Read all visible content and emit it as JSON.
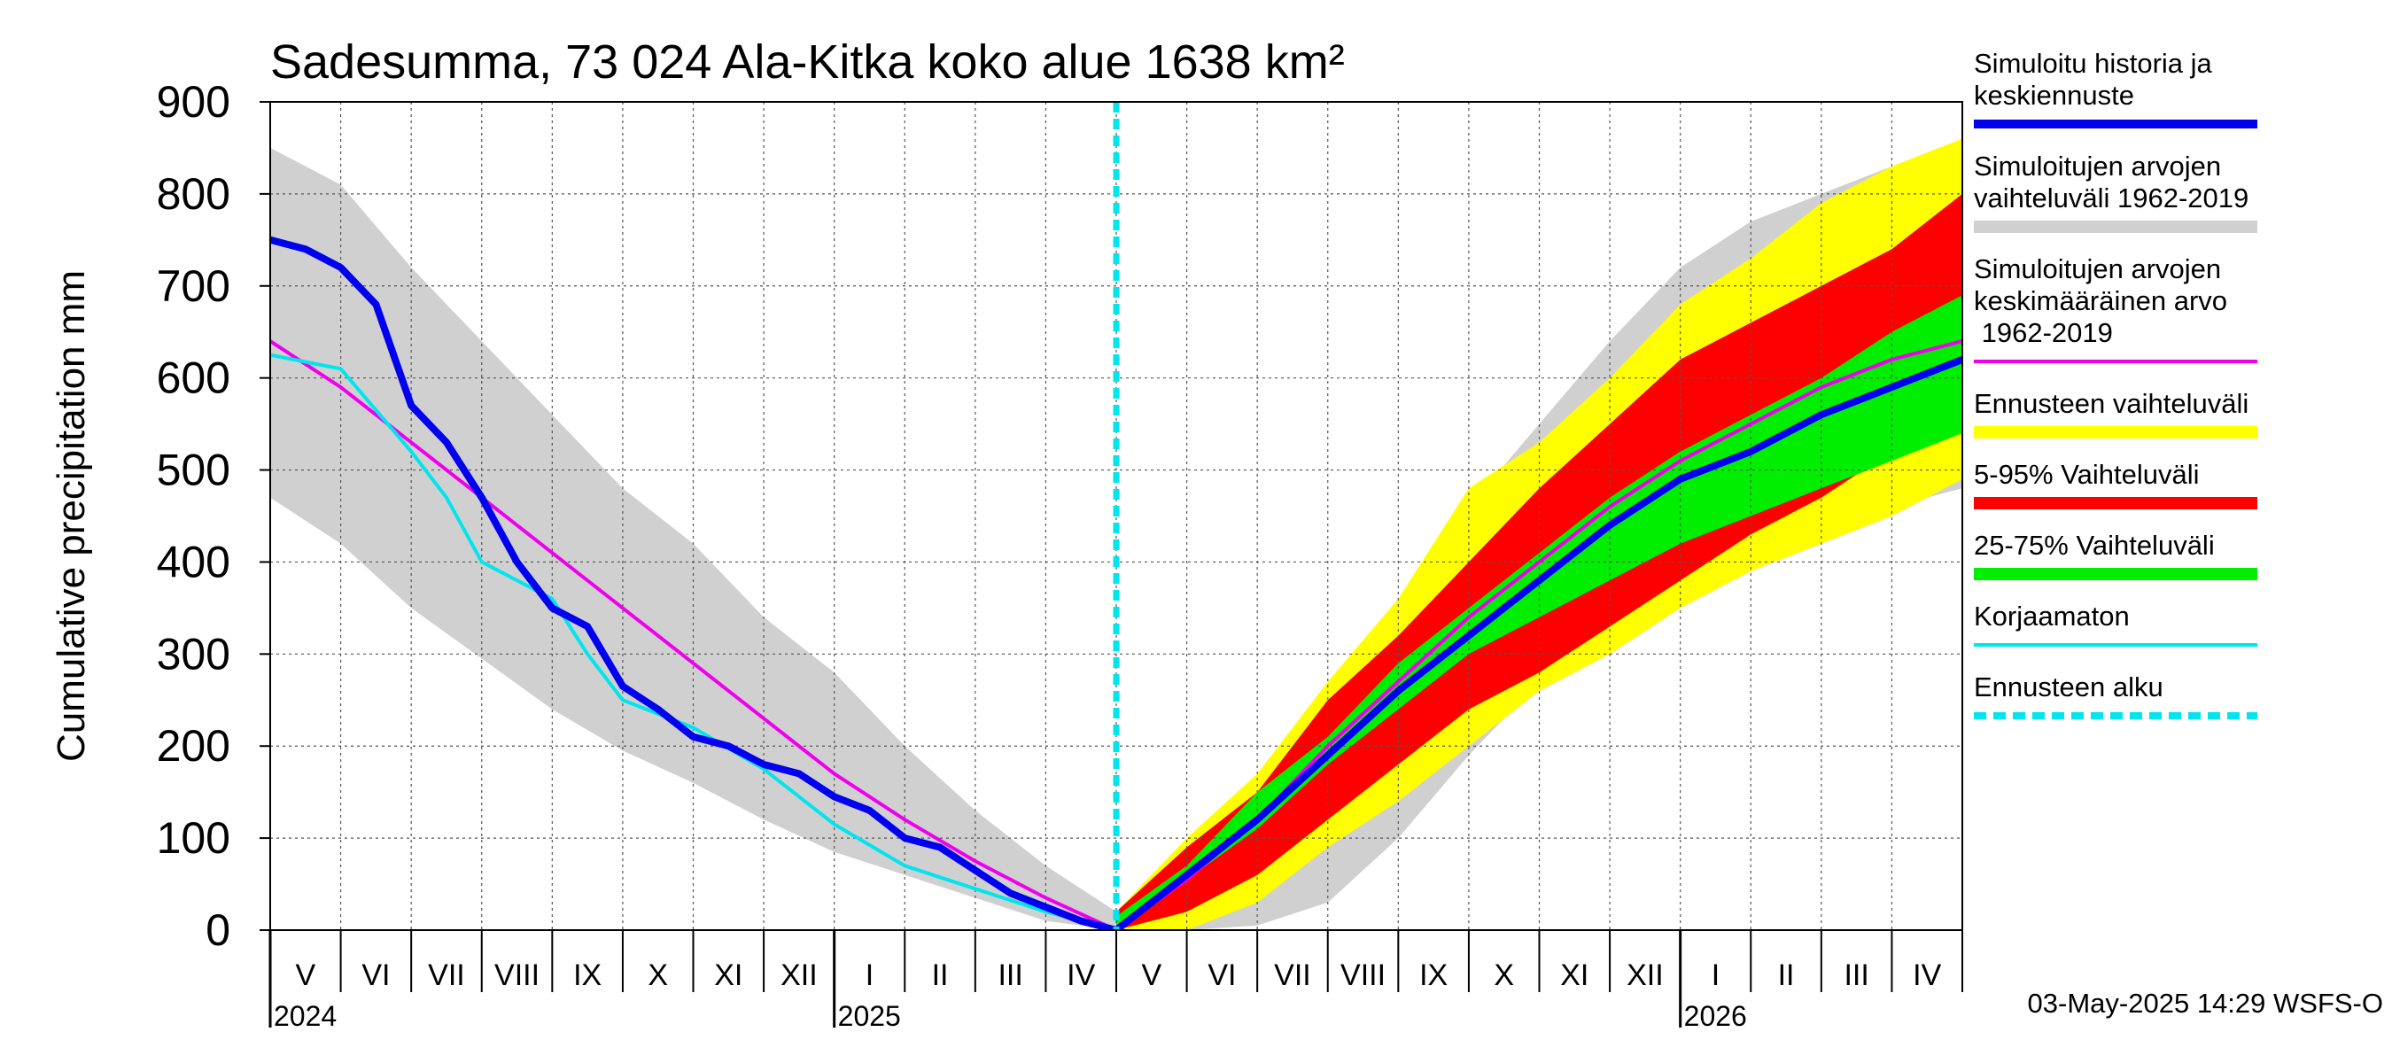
{
  "chart_data": {
    "type": "area",
    "title": "Sadesumma, 73 024 Ala-Kitka koko alue 1638 km²",
    "ylabel": "Cumulative precipitation   mm",
    "xlabel": "",
    "ylim": [
      0,
      900
    ],
    "yticks": [
      0,
      100,
      200,
      300,
      400,
      500,
      600,
      700,
      800,
      900
    ],
    "x_unit": "month index (0 = start of May 2024)",
    "xlim": [
      0,
      24
    ],
    "forecast_start": 12,
    "months": [
      "V",
      "VI",
      "VII",
      "VIII",
      "IX",
      "X",
      "XI",
      "XII",
      "I",
      "II",
      "III",
      "IV",
      "V",
      "VI",
      "VII",
      "VIII",
      "IX",
      "X",
      "XI",
      "XII",
      "I",
      "II",
      "III",
      "IV"
    ],
    "years": [
      {
        "label": "2024",
        "at": 0
      },
      {
        "label": "2025",
        "at": 8
      },
      {
        "label": "2026",
        "at": 20
      }
    ],
    "grid": true,
    "legend_position": "right",
    "legend": [
      {
        "label": "Simuloitu historia ja\nkeskiennuste",
        "color": "#0000ee",
        "style": "thick"
      },
      {
        "label": "Simuloitujen arvojen\nvaihteluväli 1962-2019",
        "color": "#d0d0d0",
        "style": "band"
      },
      {
        "label": "Simuloitujen arvojen\nkeskimääräinen arvo\n   1962-2019",
        "color": "#ee00ee",
        "style": "thin"
      },
      {
        "label": "Ennusteen vaihteluväli",
        "color": "#ffff00",
        "style": "band"
      },
      {
        "label": "5-95% Vaihteluväli",
        "color": "#ff0000",
        "style": "band"
      },
      {
        "label": "25-75% Vaihteluväli",
        "color": "#00ee00",
        "style": "band"
      },
      {
        "label": "Korjaamaton",
        "color": "#00e5ee",
        "style": "thin"
      },
      {
        "label": "Ennusteen alku",
        "color": "#00e5ee",
        "style": "dashed"
      }
    ],
    "series": [
      {
        "name": "Simuloitujen arvojen vaihteluväli 1962-2019",
        "kind": "band",
        "color": "#d0d0d0",
        "x": [
          0,
          1,
          2,
          3,
          4,
          5,
          6,
          7,
          8,
          9,
          10,
          11,
          12,
          13,
          14,
          15,
          16,
          17,
          18,
          19,
          20,
          21,
          22,
          23,
          24
        ],
        "lower": [
          470,
          420,
          350,
          295,
          240,
          195,
          160,
          120,
          85,
          60,
          35,
          10,
          0,
          0,
          5,
          30,
          100,
          190,
          270,
          320,
          360,
          400,
          430,
          460,
          480
        ],
        "upper": [
          850,
          810,
          720,
          640,
          560,
          480,
          420,
          340,
          280,
          200,
          130,
          70,
          20,
          80,
          160,
          240,
          320,
          460,
          550,
          640,
          720,
          770,
          800,
          830,
          845
        ]
      },
      {
        "name": "Ennusteen vaihteluväli",
        "kind": "band",
        "color": "#ffff00",
        "x": [
          12,
          13,
          14,
          15,
          16,
          17,
          18,
          19,
          20,
          21,
          22,
          23,
          24
        ],
        "lower": [
          0,
          0,
          30,
          90,
          140,
          200,
          260,
          300,
          350,
          390,
          420,
          450,
          490
        ],
        "upper": [
          20,
          100,
          170,
          270,
          360,
          480,
          530,
          600,
          680,
          730,
          790,
          830,
          860
        ]
      },
      {
        "name": "5-95% Vaihteluväli",
        "kind": "band",
        "color": "#ff0000",
        "x": [
          12,
          13,
          14,
          15,
          16,
          17,
          18,
          19,
          20,
          21,
          22,
          23,
          24
        ],
        "lower": [
          0,
          20,
          60,
          120,
          180,
          240,
          280,
          330,
          380,
          430,
          470,
          520,
          570
        ],
        "upper": [
          20,
          90,
          150,
          250,
          320,
          400,
          480,
          550,
          620,
          660,
          700,
          740,
          800
        ]
      },
      {
        "name": "25-75% Vaihteluväli",
        "kind": "band",
        "color": "#00ee00",
        "x": [
          12,
          13,
          14,
          15,
          16,
          17,
          18,
          19,
          20,
          21,
          22,
          23,
          24
        ],
        "lower": [
          5,
          55,
          110,
          180,
          240,
          300,
          340,
          380,
          420,
          450,
          480,
          510,
          540
        ],
        "upper": [
          15,
          70,
          150,
          210,
          290,
          350,
          410,
          470,
          520,
          560,
          600,
          650,
          690
        ]
      },
      {
        "name": "Simuloitujen arvojen keskimääräinen arvo 1962-2019",
        "kind": "line",
        "color": "#ee00ee",
        "x": [
          0,
          1,
          2,
          3,
          4,
          5,
          6,
          7,
          8,
          9,
          10,
          11,
          12,
          13,
          14,
          15,
          16,
          17,
          18,
          19,
          20,
          21,
          22,
          23,
          24
        ],
        "values": [
          640,
          590,
          530,
          470,
          410,
          350,
          290,
          230,
          170,
          120,
          75,
          35,
          0,
          55,
          120,
          200,
          270,
          340,
          400,
          460,
          510,
          550,
          590,
          620,
          640
        ]
      },
      {
        "name": "Korjaamaton",
        "kind": "line",
        "color": "#00e5ee",
        "x": [
          0,
          1,
          2,
          2.5,
          3,
          3.5,
          4,
          4.5,
          5,
          6,
          7,
          8,
          9,
          10,
          11,
          12
        ],
        "values": [
          625,
          610,
          520,
          470,
          400,
          380,
          360,
          300,
          250,
          220,
          175,
          115,
          70,
          45,
          20,
          0
        ]
      },
      {
        "name": "Simuloitu historia ja keskiennuste",
        "kind": "line",
        "color": "#0000ee",
        "x": [
          0,
          0.5,
          1,
          1.5,
          2,
          2.5,
          3,
          3.5,
          4,
          4.5,
          5,
          5.5,
          6,
          6.5,
          7,
          7.5,
          8,
          8.5,
          9,
          9.5,
          10,
          10.5,
          11,
          11.5,
          12,
          13,
          14,
          15,
          16,
          17,
          18,
          19,
          20,
          21,
          22,
          23,
          24
        ],
        "values": [
          750,
          740,
          720,
          680,
          570,
          530,
          470,
          400,
          350,
          330,
          265,
          240,
          210,
          200,
          180,
          170,
          145,
          130,
          100,
          90,
          65,
          40,
          25,
          10,
          0,
          60,
          120,
          190,
          260,
          320,
          380,
          440,
          490,
          520,
          560,
          590,
          620
        ]
      }
    ]
  },
  "footer": {
    "timestamp": "03-May-2025 14:29 WSFS-O"
  }
}
